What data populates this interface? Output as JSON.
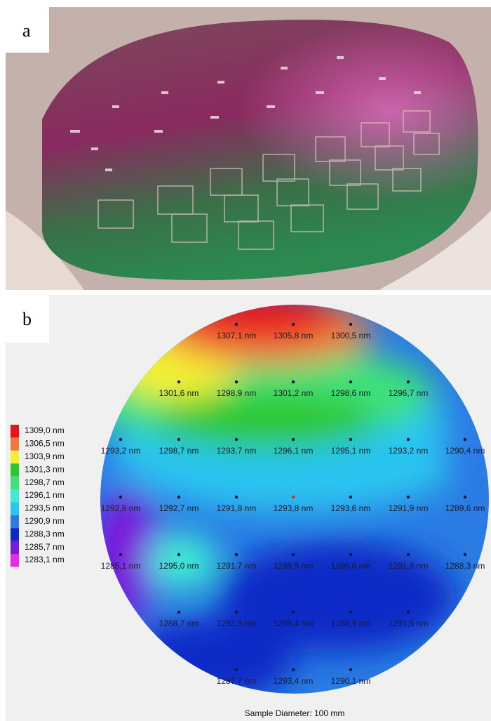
{
  "panel_a": {
    "label": "a"
  },
  "panel_b": {
    "label": "b",
    "legend": [
      {
        "label": "1309,0 nm",
        "color": "#e8141c"
      },
      {
        "label": "1306,5 nm",
        "color": "#ef7a3c"
      },
      {
        "label": "1303,9 nm",
        "color": "#f4f030"
      },
      {
        "label": "1301,3 nm",
        "color": "#2ec82e"
      },
      {
        "label": "1298,7 nm",
        "color": "#3de27a"
      },
      {
        "label": "1296,1 nm",
        "color": "#3eecd4"
      },
      {
        "label": "1293,5 nm",
        "color": "#2cc4f0"
      },
      {
        "label": "1290,9 nm",
        "color": "#2a7ce4"
      },
      {
        "label": "1288,3 nm",
        "color": "#0b2ac6"
      },
      {
        "label": "1285,7 nm",
        "color": "#7a18dc"
      },
      {
        "label": "1283,1 nm",
        "color": "#e42ce4"
      }
    ],
    "points": [
      [
        "1307,1 nm",
        "1305,8 nm",
        "1300,5 nm"
      ],
      [
        "1301,6 nm",
        "1298,9 nm",
        "1301,2 nm",
        "1298,6 nm",
        "1296,7 nm"
      ],
      [
        "1293,2 nm",
        "1298,7 nm",
        "1293,7 nm",
        "1296,1 nm",
        "1295,1 nm",
        "1293,2 nm",
        "1290,4 nm"
      ],
      [
        "1292,8 nm",
        "1292,7 nm",
        "1291,8 nm",
        "1293,8 nm",
        "1293,6 nm",
        "1291,9 nm",
        "1289,6 nm"
      ],
      [
        "1285,1 nm",
        "1295,0 nm",
        "1291,7 nm",
        "1289,5 nm",
        "1290,8 nm",
        "1291,9 nm",
        "1288,3 nm"
      ],
      [
        "1288,7 nm",
        "1292,3 nm",
        "1289,4 nm",
        "1288,9 nm",
        "1291,5 nm"
      ],
      [
        "1287,7 nm",
        "1293,4 nm",
        "1290,1 nm"
      ]
    ],
    "footer": "Sample Diameter: 100 mm"
  }
}
